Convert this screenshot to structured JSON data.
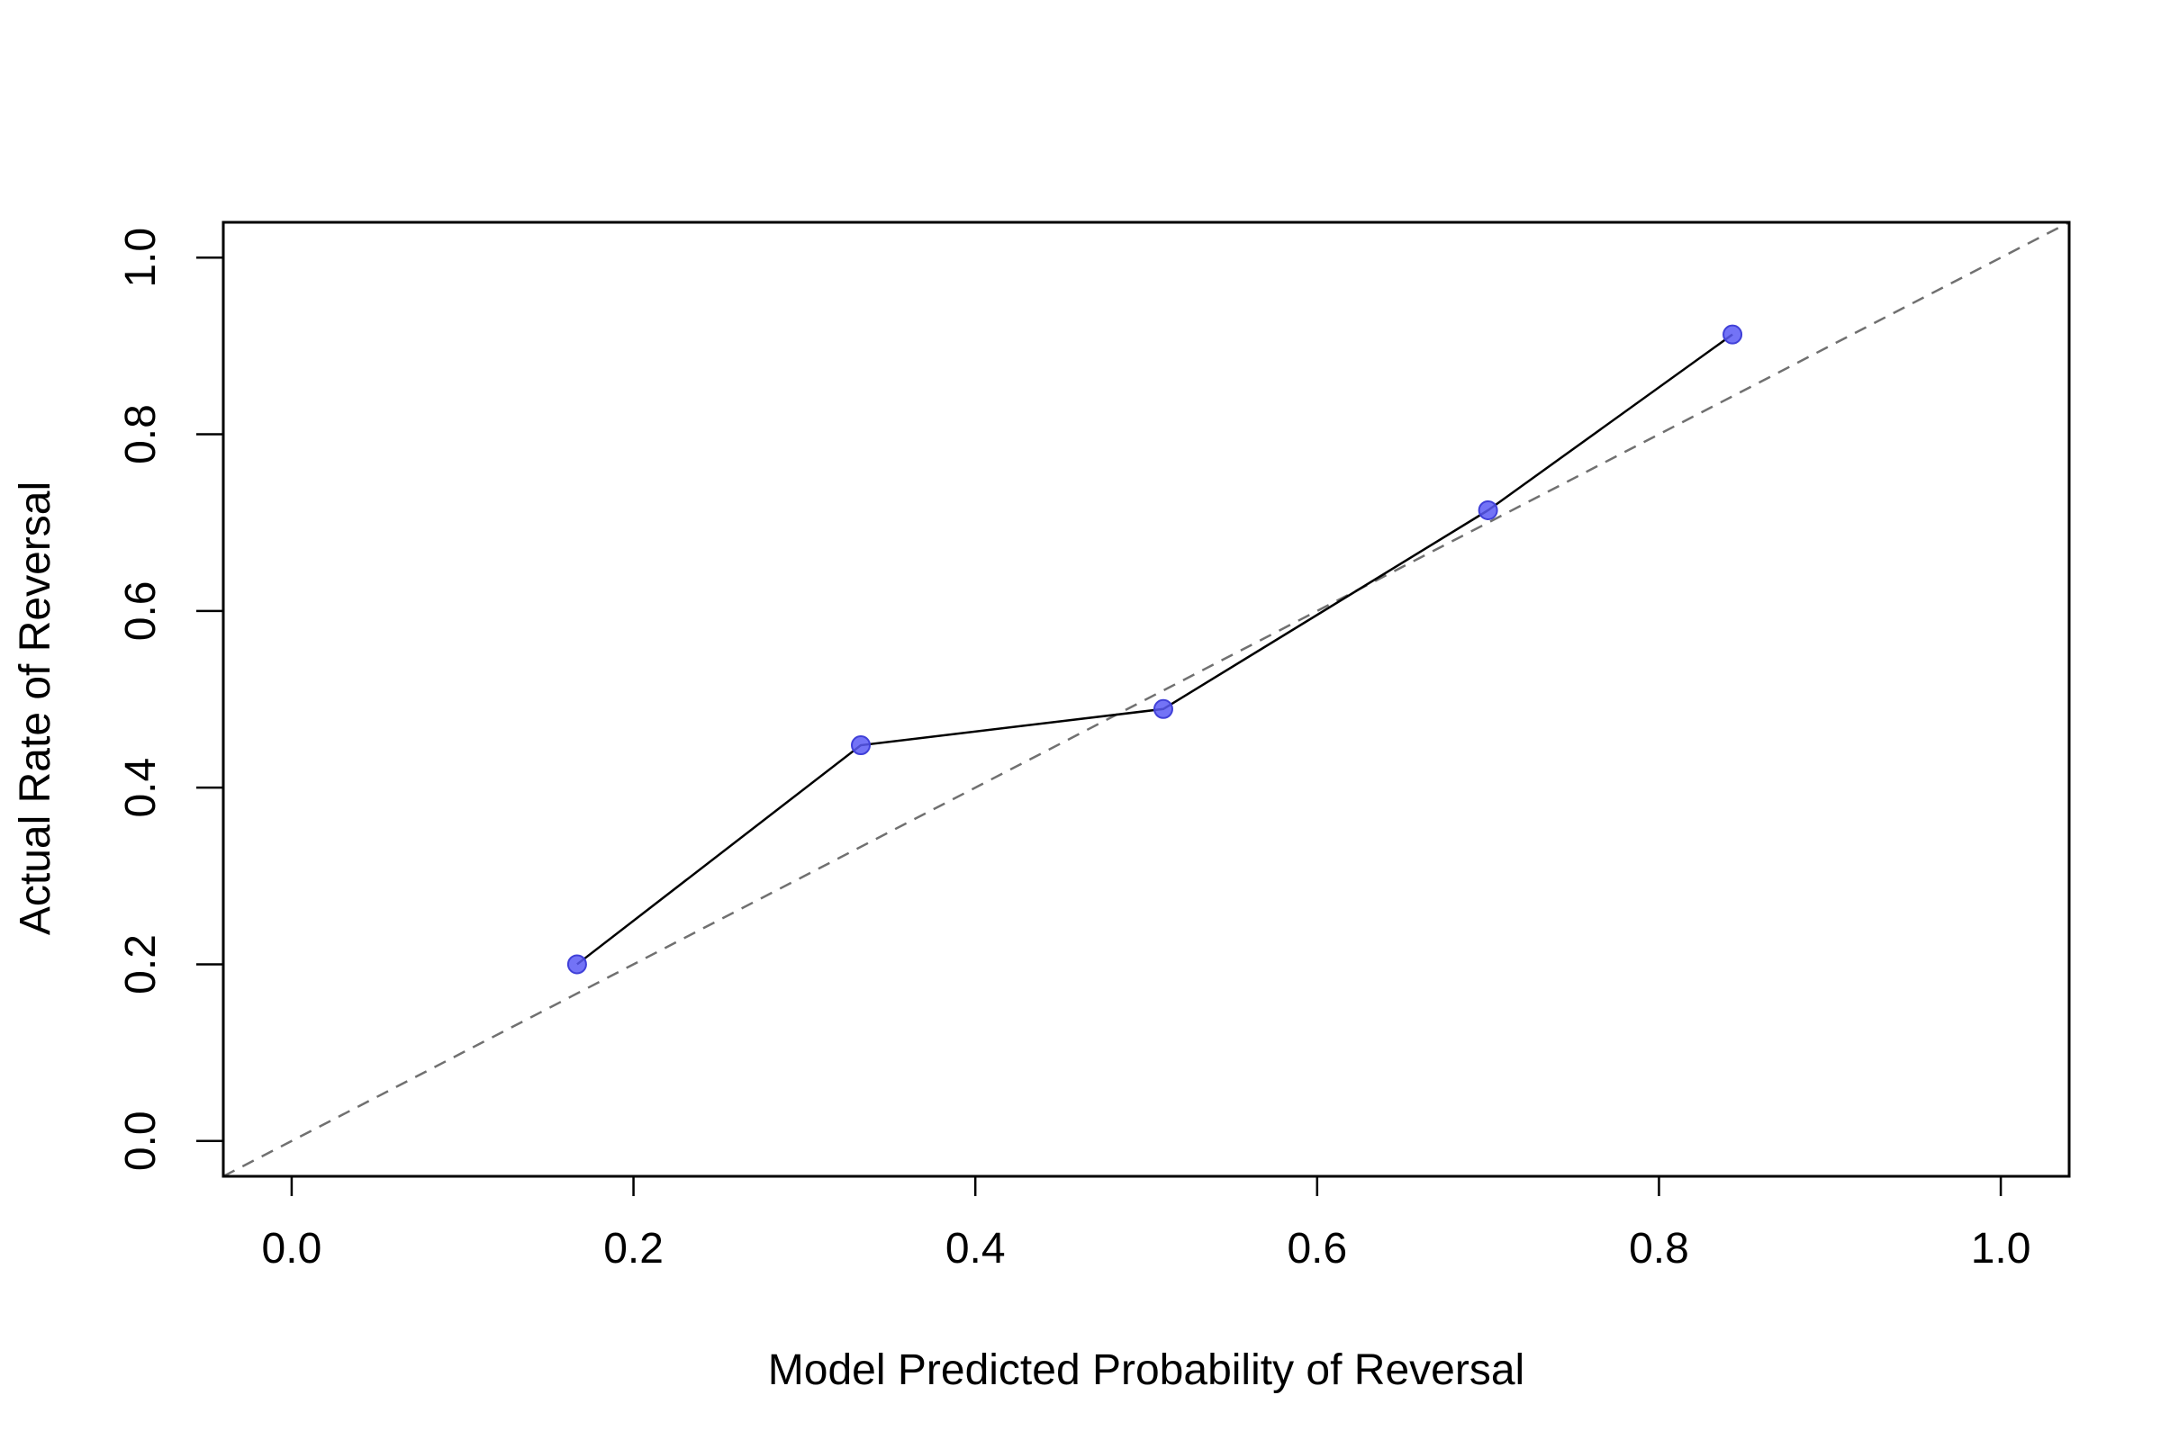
{
  "chart_data": {
    "type": "line",
    "title": "",
    "xlabel": "Model Predicted Probability of Reversal",
    "ylabel": "Actual Rate of Reversal",
    "xlim": [
      -0.04,
      1.04
    ],
    "ylim": [
      -0.04,
      1.04
    ],
    "x_ticks": [
      0.0,
      0.2,
      0.4,
      0.6,
      0.8,
      1.0
    ],
    "x_tick_labels": [
      "0.0",
      "0.2",
      "0.4",
      "0.6",
      "0.8",
      "1.0"
    ],
    "y_ticks": [
      0.0,
      0.2,
      0.4,
      0.6,
      0.8,
      1.0
    ],
    "y_tick_labels": [
      "0.0",
      "0.2",
      "0.4",
      "0.6",
      "0.8",
      "1.0"
    ],
    "grid": false,
    "series": [
      {
        "x": [
          0.167,
          0.333,
          0.51,
          0.7,
          0.843
        ],
        "y": [
          0.2,
          0.448,
          0.489,
          0.714,
          0.913
        ],
        "line_color": "#000000",
        "marker_color": "#5b5bf5"
      }
    ],
    "reference_line": {
      "from": [
        0,
        0
      ],
      "to": [
        1,
        1
      ],
      "style": "dashed",
      "color": "#707070"
    }
  }
}
